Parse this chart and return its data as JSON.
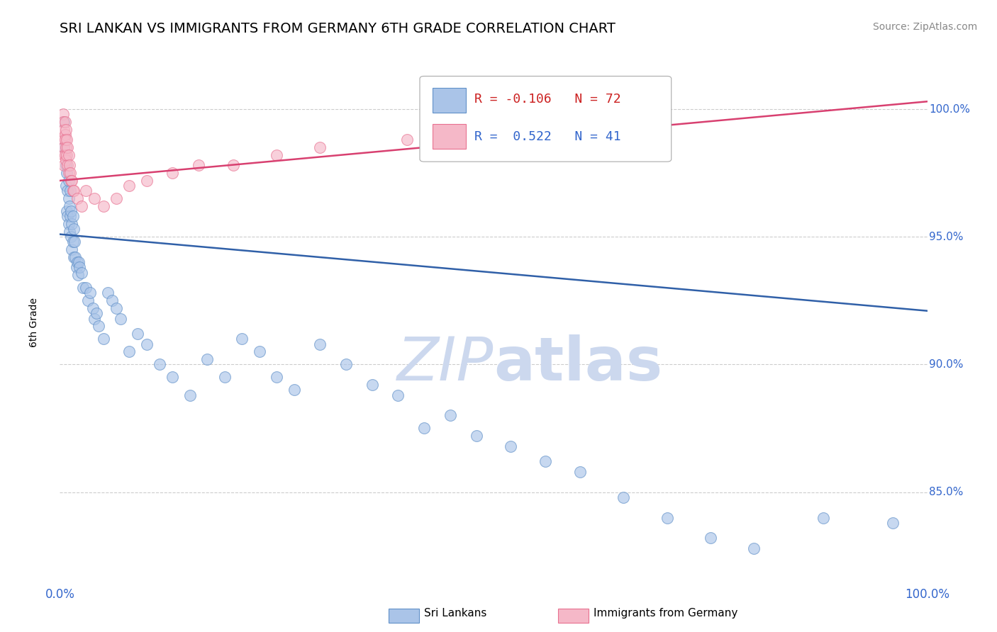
{
  "title": "SRI LANKAN VS IMMIGRANTS FROM GERMANY 6TH GRADE CORRELATION CHART",
  "source": "Source: ZipAtlas.com",
  "ylabel": "6th Grade",
  "blue_label": "Sri Lankans",
  "pink_label": "Immigrants from Germany",
  "blue_R": -0.106,
  "blue_N": 72,
  "pink_R": 0.522,
  "pink_N": 41,
  "blue_color": "#aac4e8",
  "pink_color": "#f5b8c8",
  "blue_edge_color": "#6090c8",
  "pink_edge_color": "#e87090",
  "blue_line_color": "#3060a8",
  "pink_line_color": "#d84070",
  "watermark_color": "#ccd8ee",
  "xmin": 0.0,
  "xmax": 1.0,
  "ymin": 0.815,
  "ymax": 1.018,
  "yticks": [
    0.85,
    0.9,
    0.95,
    1.0
  ],
  "ytick_labels": [
    "85.0%",
    "90.0%",
    "95.0%",
    "100.0%"
  ],
  "blue_line_x0": 0.0,
  "blue_line_x1": 1.0,
  "blue_line_y0": 0.951,
  "blue_line_y1": 0.921,
  "pink_line_x0": 0.0,
  "pink_line_x1": 1.0,
  "pink_line_y0": 0.972,
  "pink_line_y1": 1.003,
  "blue_x": [
    0.005,
    0.005,
    0.007,
    0.007,
    0.008,
    0.008,
    0.009,
    0.009,
    0.01,
    0.01,
    0.01,
    0.011,
    0.011,
    0.012,
    0.012,
    0.013,
    0.013,
    0.014,
    0.014,
    0.015,
    0.015,
    0.016,
    0.016,
    0.017,
    0.018,
    0.019,
    0.02,
    0.021,
    0.022,
    0.023,
    0.025,
    0.027,
    0.03,
    0.032,
    0.035,
    0.038,
    0.04,
    0.042,
    0.045,
    0.05,
    0.055,
    0.06,
    0.065,
    0.07,
    0.08,
    0.09,
    0.1,
    0.115,
    0.13,
    0.15,
    0.17,
    0.19,
    0.21,
    0.23,
    0.25,
    0.27,
    0.3,
    0.33,
    0.36,
    0.39,
    0.42,
    0.45,
    0.48,
    0.52,
    0.56,
    0.6,
    0.65,
    0.7,
    0.75,
    0.8,
    0.88,
    0.96
  ],
  "blue_y": [
    0.995,
    0.985,
    0.978,
    0.97,
    0.975,
    0.96,
    0.968,
    0.958,
    0.972,
    0.965,
    0.955,
    0.962,
    0.952,
    0.968,
    0.958,
    0.96,
    0.95,
    0.955,
    0.945,
    0.958,
    0.948,
    0.953,
    0.942,
    0.948,
    0.942,
    0.938,
    0.94,
    0.935,
    0.94,
    0.938,
    0.936,
    0.93,
    0.93,
    0.925,
    0.928,
    0.922,
    0.918,
    0.92,
    0.915,
    0.91,
    0.928,
    0.925,
    0.922,
    0.918,
    0.905,
    0.912,
    0.908,
    0.9,
    0.895,
    0.888,
    0.902,
    0.895,
    0.91,
    0.905,
    0.895,
    0.89,
    0.908,
    0.9,
    0.892,
    0.888,
    0.875,
    0.88,
    0.872,
    0.868,
    0.862,
    0.858,
    0.848,
    0.84,
    0.832,
    0.828,
    0.84,
    0.838
  ],
  "pink_x": [
    0.004,
    0.004,
    0.005,
    0.005,
    0.005,
    0.005,
    0.005,
    0.006,
    0.006,
    0.006,
    0.006,
    0.007,
    0.007,
    0.007,
    0.008,
    0.008,
    0.009,
    0.009,
    0.01,
    0.01,
    0.011,
    0.012,
    0.013,
    0.014,
    0.015,
    0.016,
    0.02,
    0.025,
    0.03,
    0.04,
    0.05,
    0.065,
    0.08,
    0.1,
    0.13,
    0.16,
    0.2,
    0.25,
    0.3,
    0.4,
    0.5
  ],
  "pink_y": [
    0.998,
    0.995,
    0.992,
    0.988,
    0.985,
    0.982,
    0.978,
    0.995,
    0.99,
    0.988,
    0.982,
    0.992,
    0.985,
    0.98,
    0.988,
    0.982,
    0.985,
    0.978,
    0.982,
    0.975,
    0.978,
    0.975,
    0.972,
    0.972,
    0.968,
    0.968,
    0.965,
    0.962,
    0.968,
    0.965,
    0.962,
    0.965,
    0.97,
    0.972,
    0.975,
    0.978,
    0.978,
    0.982,
    0.985,
    0.988,
    0.995
  ]
}
